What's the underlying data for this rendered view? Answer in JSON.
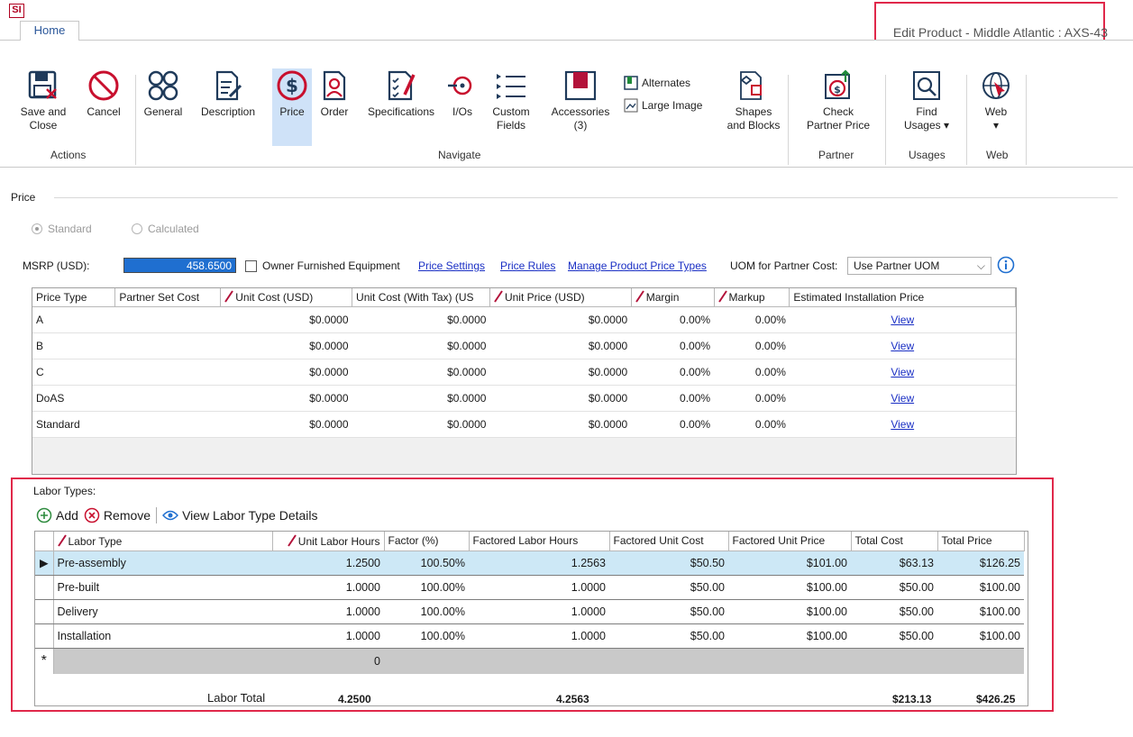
{
  "app": {
    "logo_text": "SI",
    "window_title": "Edit Product - Middle Atlantic : AXS-43"
  },
  "ribbon": {
    "tab": "Home",
    "buttons": {
      "save_close": "Save and\nClose",
      "cancel": "Cancel",
      "general": "General",
      "description": "Description",
      "price": "Price",
      "order": "Order",
      "specifications": "Specifications",
      "ios": "I/Os",
      "custom_fields": "Custom\nFields",
      "accessories": "Accessories\n(3)",
      "alternates": "Alternates",
      "large_image": "Large Image",
      "shapes_blocks": "Shapes\nand Blocks",
      "check_partner_price": "Check\nPartner Price",
      "find_usages": "Find\nUsages ▾",
      "web": "Web\n▾"
    },
    "groups": {
      "actions": "Actions",
      "navigate": "Navigate",
      "partner": "Partner",
      "usages": "Usages",
      "web": "Web"
    }
  },
  "price": {
    "section_title": "Price",
    "radio_standard": "Standard",
    "radio_calculated": "Calculated",
    "msrp_label": "MSRP (USD):",
    "msrp_value": "458.6500",
    "owner_furnished": "Owner Furnished Equipment",
    "links": {
      "price_settings": "Price Settings",
      "price_rules": "Price Rules",
      "manage_types": "Manage Product Price Types"
    },
    "uom_label": "UOM for Partner Cost:",
    "uom_value": "Use Partner UOM",
    "columns": [
      "Price Type",
      "Partner Set Cost",
      "Unit Cost (USD)",
      "Unit Cost (With Tax) (US",
      "Unit Price (USD)",
      "Margin",
      "Markup",
      "Estimated Installation Price"
    ],
    "rows": [
      {
        "type": "A",
        "unit_cost": "$0.0000",
        "unit_cost_tax": "$0.0000",
        "unit_price": "$0.0000",
        "margin": "0.00%",
        "markup": "0.00%",
        "install": "View"
      },
      {
        "type": "B",
        "unit_cost": "$0.0000",
        "unit_cost_tax": "$0.0000",
        "unit_price": "$0.0000",
        "margin": "0.00%",
        "markup": "0.00%",
        "install": "View"
      },
      {
        "type": "C",
        "unit_cost": "$0.0000",
        "unit_cost_tax": "$0.0000",
        "unit_price": "$0.0000",
        "margin": "0.00%",
        "markup": "0.00%",
        "install": "View"
      },
      {
        "type": "DoAS",
        "unit_cost": "$0.0000",
        "unit_cost_tax": "$0.0000",
        "unit_price": "$0.0000",
        "margin": "0.00%",
        "markup": "0.00%",
        "install": "View"
      },
      {
        "type": "Standard",
        "unit_cost": "$0.0000",
        "unit_cost_tax": "$0.0000",
        "unit_price": "$0.0000",
        "margin": "0.00%",
        "markup": "0.00%",
        "install": "View"
      }
    ]
  },
  "labor": {
    "title": "Labor Types:",
    "toolbar": {
      "add": "Add",
      "remove": "Remove",
      "view_details": "View Labor Type Details"
    },
    "columns": [
      "Labor Type",
      "Unit Labor Hours",
      "Factor (%)",
      "Factored Labor Hours",
      "Factored Unit Cost",
      "Factored Unit Price",
      "Total Cost",
      "Total Price"
    ],
    "rows": [
      {
        "type": "Pre-assembly",
        "hours": "1.2500",
        "factor": "100.50%",
        "factored_hours": "1.2563",
        "unit_cost": "$50.50",
        "unit_price": "$101.00",
        "total_cost": "$63.13",
        "total_price": "$126.25"
      },
      {
        "type": "Pre-built",
        "hours": "1.0000",
        "factor": "100.00%",
        "factored_hours": "1.0000",
        "unit_cost": "$50.00",
        "unit_price": "$100.00",
        "total_cost": "$50.00",
        "total_price": "$100.00"
      },
      {
        "type": "Delivery",
        "hours": "1.0000",
        "factor": "100.00%",
        "factored_hours": "1.0000",
        "unit_cost": "$50.00",
        "unit_price": "$100.00",
        "total_cost": "$50.00",
        "total_price": "$100.00"
      },
      {
        "type": "Installation",
        "hours": "1.0000",
        "factor": "100.00%",
        "factored_hours": "1.0000",
        "unit_cost": "$50.00",
        "unit_price": "$100.00",
        "total_cost": "$50.00",
        "total_price": "$100.00"
      }
    ],
    "new_row_indicator": "*",
    "new_row_hours": "0",
    "selected_indicator": "▶",
    "totals": {
      "label": "Labor Total",
      "hours": "4.2500",
      "factored_hours": "4.2563",
      "total_cost": "$213.13",
      "total_price": "$426.25"
    }
  },
  "colors": {
    "accent": "#1f6fd0",
    "highlight": "#e0284a",
    "link": "#1a2fc4",
    "selected_row": "#cde8f6",
    "pen_icon": "#b3123a"
  }
}
